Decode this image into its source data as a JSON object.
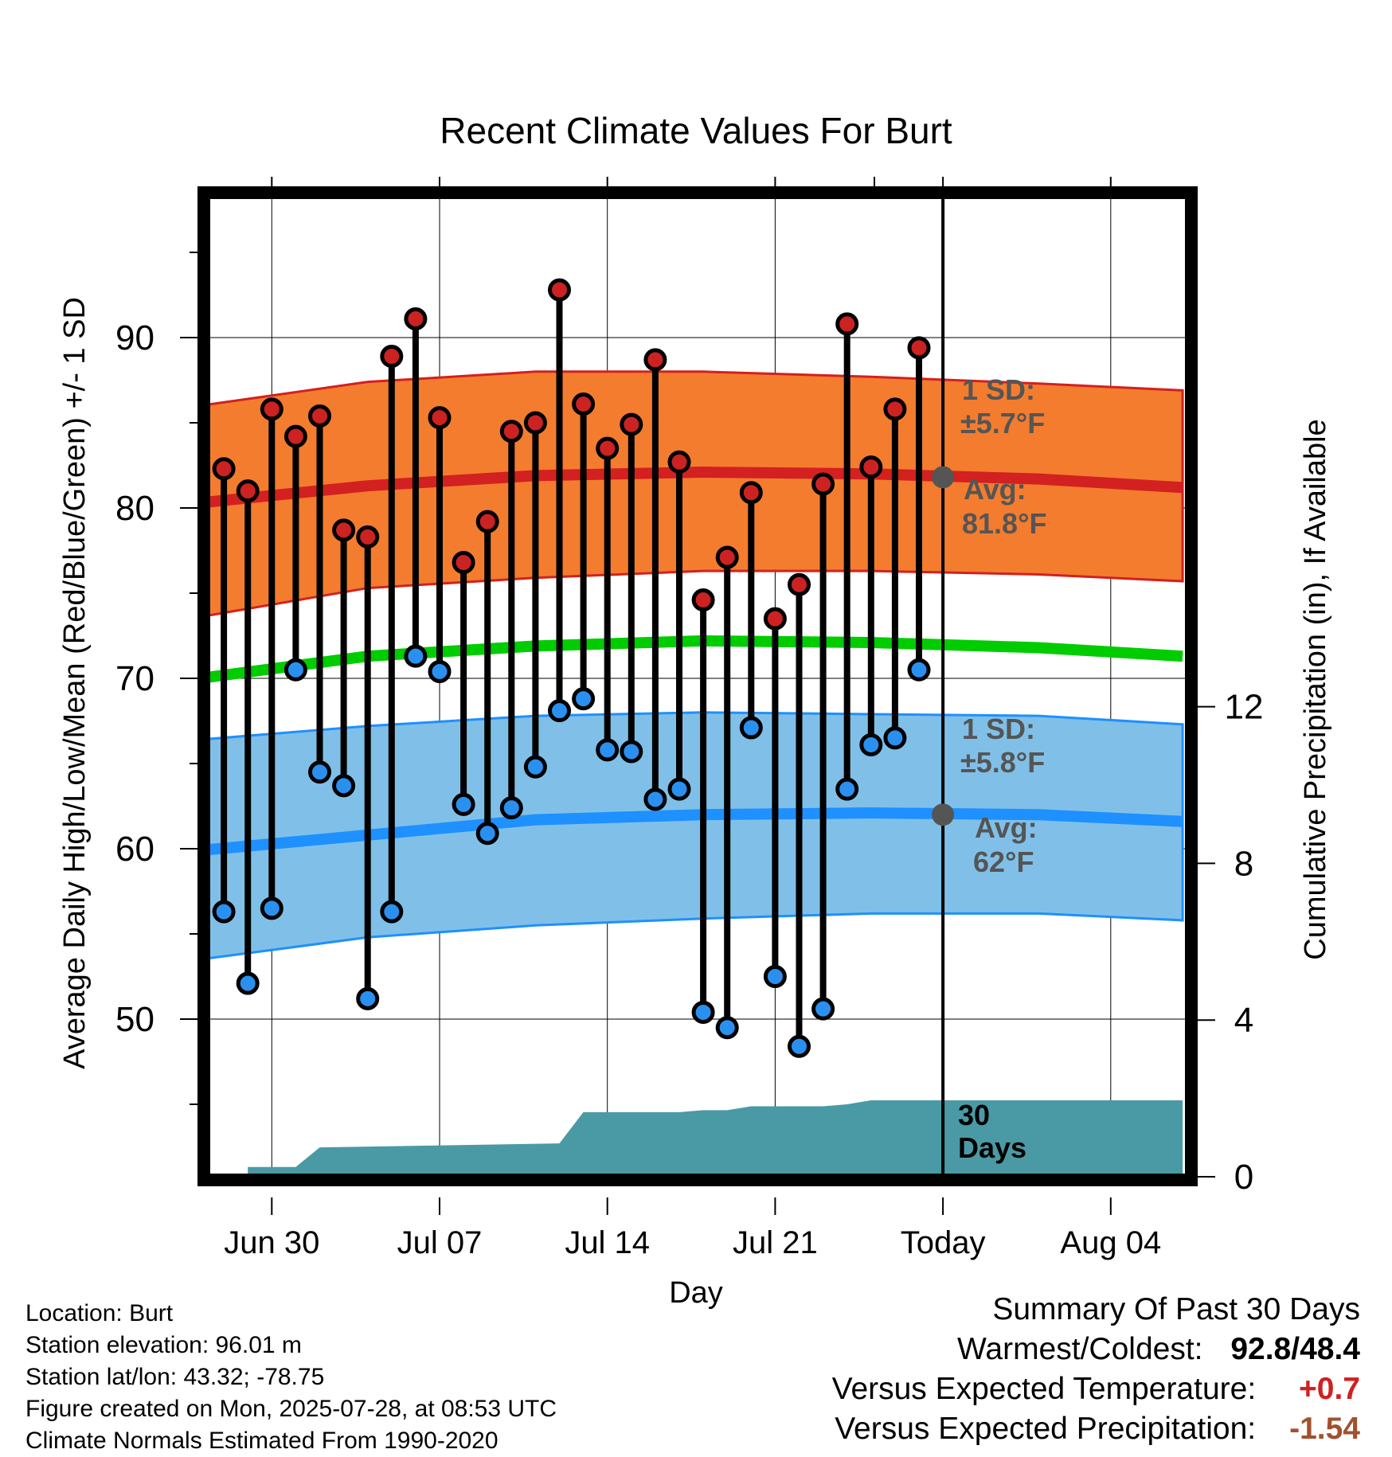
{
  "chart_data": {
    "type": "line",
    "title": "Recent Climate Values For Burt",
    "xlabel": "Day",
    "ylabel": "Average Daily High/Low/Mean (Red/Blue/Green) +/- 1 SD",
    "y2label": "Cumulative Precipitation (in), If Available",
    "x_ticks": [
      "Jun 30",
      "Jul 07",
      "Jul 14",
      "Jul 21",
      "Today",
      "Aug 04"
    ],
    "x_range": [
      "2025-06-27",
      "2025-08-07"
    ],
    "ylim": [
      40,
      98
    ],
    "y_ticks": [
      50,
      60,
      70,
      80,
      90
    ],
    "y2lim": [
      0,
      24
    ],
    "y2_ticks": [
      0,
      4,
      8,
      12
    ],
    "grid": true,
    "dates": [
      "2025-06-28",
      "2025-06-29",
      "2025-06-30",
      "2025-07-01",
      "2025-07-02",
      "2025-07-03",
      "2025-07-04",
      "2025-07-05",
      "2025-07-06",
      "2025-07-07",
      "2025-07-08",
      "2025-07-09",
      "2025-07-10",
      "2025-07-11",
      "2025-07-12",
      "2025-07-13",
      "2025-07-14",
      "2025-07-15",
      "2025-07-16",
      "2025-07-17",
      "2025-07-18",
      "2025-07-19",
      "2025-07-20",
      "2025-07-21",
      "2025-07-22",
      "2025-07-23",
      "2025-07-24",
      "2025-07-25",
      "2025-07-26",
      "2025-07-27"
    ],
    "highs": [
      82.3,
      81.0,
      85.8,
      84.2,
      85.4,
      78.7,
      78.3,
      88.9,
      91.1,
      85.3,
      76.8,
      79.2,
      84.5,
      85.0,
      92.8,
      86.1,
      83.5,
      84.9,
      88.7,
      82.7,
      74.6,
      77.1,
      80.9,
      73.5,
      75.5,
      81.4,
      90.8,
      82.4,
      85.8,
      89.4
    ],
    "lows": [
      56.3,
      52.1,
      56.5,
      70.5,
      64.5,
      63.7,
      51.2,
      56.3,
      71.3,
      70.4,
      62.6,
      60.9,
      62.4,
      64.8,
      68.1,
      68.8,
      65.8,
      65.7,
      62.9,
      63.5,
      50.4,
      49.5,
      67.1,
      52.5,
      48.4,
      50.6,
      63.5,
      66.1,
      66.5,
      70.5
    ],
    "normals": {
      "x": [
        "2025-06-27",
        "2025-07-04",
        "2025-07-11",
        "2025-07-18",
        "2025-07-25",
        "2025-08-01",
        "2025-08-07"
      ],
      "high_avg": [
        80.3,
        81.3,
        81.9,
        82.1,
        82.0,
        81.7,
        81.2
      ],
      "high_sd_upper": [
        86.0,
        87.4,
        88.0,
        88.0,
        87.7,
        87.3,
        86.9
      ],
      "high_sd_lower": [
        73.6,
        75.3,
        75.9,
        76.3,
        76.3,
        76.1,
        75.7
      ],
      "mean_avg": [
        70.0,
        71.3,
        71.9,
        72.2,
        72.1,
        71.8,
        71.3
      ],
      "low_avg": [
        59.9,
        60.8,
        61.7,
        62.0,
        62.1,
        62.0,
        61.6
      ],
      "low_sd_upper": [
        66.4,
        67.2,
        67.8,
        68.0,
        67.9,
        67.8,
        67.3
      ],
      "low_sd_lower": [
        53.5,
        54.8,
        55.5,
        55.9,
        56.2,
        56.2,
        55.8
      ]
    },
    "precip": {
      "x": [
        "2025-06-27",
        "2025-06-29",
        "2025-06-29",
        "2025-07-01",
        "2025-07-02",
        "2025-07-12",
        "2025-07-13",
        "2025-07-17",
        "2025-07-18",
        "2025-07-19",
        "2025-07-20",
        "2025-07-22",
        "2025-07-23",
        "2025-07-24",
        "2025-07-25",
        "2025-07-26",
        "2025-07-27",
        "2025-08-07"
      ],
      "cumulative": [
        0,
        0,
        0.25,
        0.25,
        0.75,
        0.85,
        1.65,
        1.65,
        1.7,
        1.7,
        1.8,
        1.8,
        1.8,
        1.85,
        1.95,
        1.95,
        1.95,
        1.95
      ]
    },
    "annotations": {
      "high_sd_label": "1 SD:",
      "high_sd_value": "±5.7°F",
      "high_avg_label": "Avg:",
      "high_avg_value": "81.8°F",
      "low_sd_label": "1 SD:",
      "low_sd_value": "±5.8°F",
      "low_avg_label": "Avg:",
      "low_avg_value": "62°F",
      "days_label_1": "30",
      "days_label_2": "Days"
    },
    "colors": {
      "high_band": "#f47c2e",
      "high_line": "#d32020",
      "mean_line": "#00cc00",
      "low_band": "#80c0e8",
      "low_line": "#1e90ff",
      "precip": "#4a9aa5",
      "high_marker": "#cc2222",
      "low_marker": "#2a90f0"
    }
  },
  "footer": {
    "location": "Location: Burt",
    "elevation": "Station elevation: 96.01 m",
    "latlon": "Station lat/lon: 43.32; -78.75",
    "created": "Figure created on Mon, 2025-07-28, at 08:53 UTC",
    "normals": "Climate Normals Estimated From 1990-2020"
  },
  "summary": {
    "heading": "Summary Of Past 30 Days",
    "warm_cold_label": "Warmest/Coldest:",
    "warm_cold_value": "92.8/48.4",
    "temp_label": "Versus Expected Temperature:",
    "temp_value": "+0.7",
    "precip_label": "Versus Expected Precipitation:",
    "precip_value": "-1.54",
    "temp_color": "#d02020",
    "precip_color": "#a0522d"
  }
}
